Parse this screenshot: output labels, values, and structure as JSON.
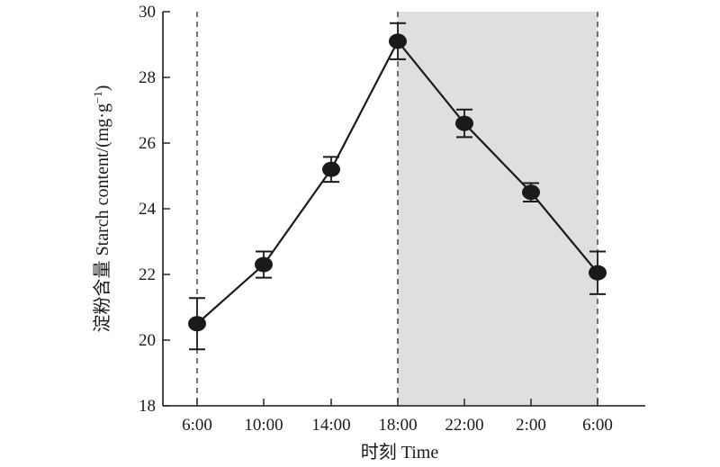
{
  "chart_data": {
    "type": "line",
    "title": "",
    "xlabel": "时刻 Time",
    "ylabel": "淀粉含量 Starch content/(mg·g",
    "ylabel_superscript": "−1",
    "ylabel_close": ")",
    "categories": [
      "6:00",
      "10:00",
      "14:00",
      "18:00",
      "22:00",
      "2:00",
      "6:00"
    ],
    "series": [
      {
        "values": [
          20.5,
          22.3,
          25.2,
          29.1,
          26.6,
          24.5,
          22.05
        ],
        "errors": [
          0.78,
          0.4,
          0.38,
          0.55,
          0.42,
          0.28,
          0.65
        ]
      }
    ],
    "ylim": [
      18,
      30
    ],
    "yticks": [
      18,
      20,
      22,
      24,
      26,
      28,
      30
    ],
    "shaded_region": {
      "from_index": 3,
      "to_index": 6,
      "color": "#dedfe0"
    },
    "vertical_dashed_lines_at_index": [
      0,
      3,
      6
    ],
    "grid": false,
    "colors": {
      "line": "#1a1a1a",
      "marker": "#1a1a1a"
    }
  }
}
